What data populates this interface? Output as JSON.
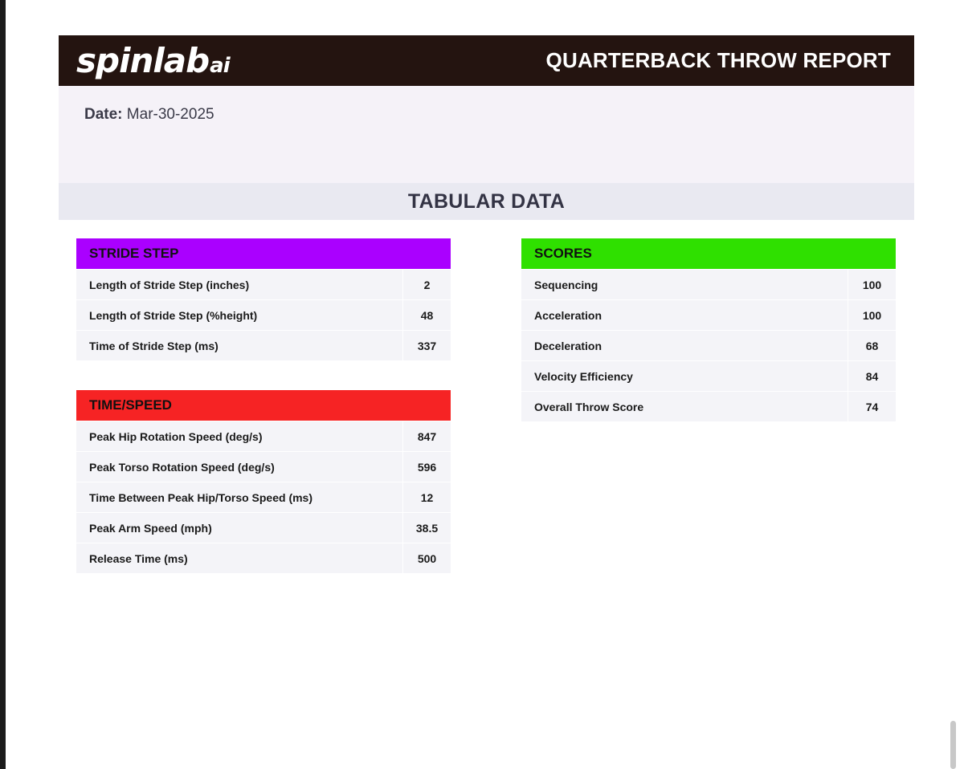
{
  "header": {
    "logo_main": "spinlab",
    "logo_suffix": "ai",
    "title": "QUARTERBACK THROW REPORT",
    "background_color": "#241410"
  },
  "meta": {
    "date_label": "Date:",
    "date_value": "Mar-30-2025"
  },
  "section": {
    "title": "TABULAR DATA"
  },
  "stride_step": {
    "title": "STRIDE STEP",
    "color": "#aa00ff",
    "rows": [
      {
        "label": "Length of Stride Step (inches)",
        "value": "2"
      },
      {
        "label": "Length of Stride Step (%height)",
        "value": "48"
      },
      {
        "label": "Time of Stride Step (ms)",
        "value": "337"
      }
    ]
  },
  "time_speed": {
    "title": "TIME/SPEED",
    "color": "#f62324",
    "rows": [
      {
        "label": "Peak Hip Rotation Speed (deg/s)",
        "value": "847"
      },
      {
        "label": "Peak Torso Rotation Speed (deg/s)",
        "value": "596"
      },
      {
        "label": "Time Between Peak Hip/Torso Speed (ms)",
        "value": "12"
      },
      {
        "label": "Peak Arm Speed (mph)",
        "value": "38.5"
      },
      {
        "label": "Release Time (ms)",
        "value": "500"
      }
    ]
  },
  "scores": {
    "title": "SCORES",
    "color": "#2fe000",
    "rows": [
      {
        "label": "Sequencing",
        "value": "100"
      },
      {
        "label": "Acceleration",
        "value": "100"
      },
      {
        "label": "Deceleration",
        "value": "68"
      },
      {
        "label": "Velocity Efficiency",
        "value": "84"
      },
      {
        "label": "Overall Throw Score",
        "value": "74"
      }
    ]
  }
}
